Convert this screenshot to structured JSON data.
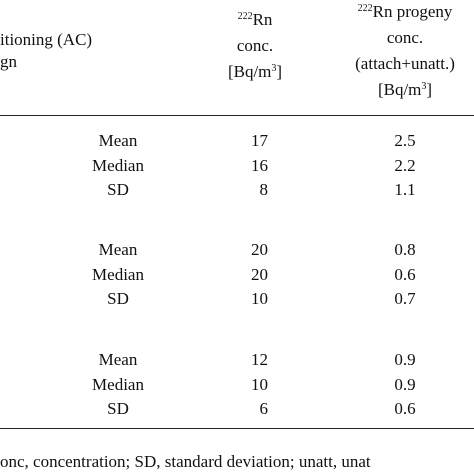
{
  "header": {
    "col1": [
      "itioning (AC)",
      "gn"
    ],
    "col2": {
      "line1": {
        "sup": "222",
        "text": "Rn"
      },
      "line2": "conc.",
      "line3": {
        "text": "[Bq/m",
        "sup": "3",
        "end": "]"
      }
    },
    "col3": {
      "line1": {
        "sup": "222",
        "text": "Rn progeny"
      },
      "line2": "conc.",
      "line3": "(attach+unatt.)",
      "line4": {
        "text": "[Bq/m",
        "sup": "3",
        "end": "]"
      }
    }
  },
  "table": {
    "groups": [
      {
        "rows": [
          [
            "Mean",
            17,
            2.5
          ],
          [
            "Median",
            16,
            2.2
          ],
          [
            "SD",
            8,
            1.1
          ]
        ]
      },
      {
        "rows": [
          [
            "Mean",
            20,
            0.8
          ],
          [
            "Median",
            20,
            0.6
          ],
          [
            "SD",
            10,
            0.7
          ]
        ]
      },
      {
        "rows": [
          [
            "Mean",
            12,
            0.9
          ],
          [
            "Median",
            10,
            0.9
          ],
          [
            "SD",
            6,
            0.6
          ]
        ]
      }
    ]
  },
  "footnote": "onc, concentration; SD, standard deviation; unatt, unat"
}
